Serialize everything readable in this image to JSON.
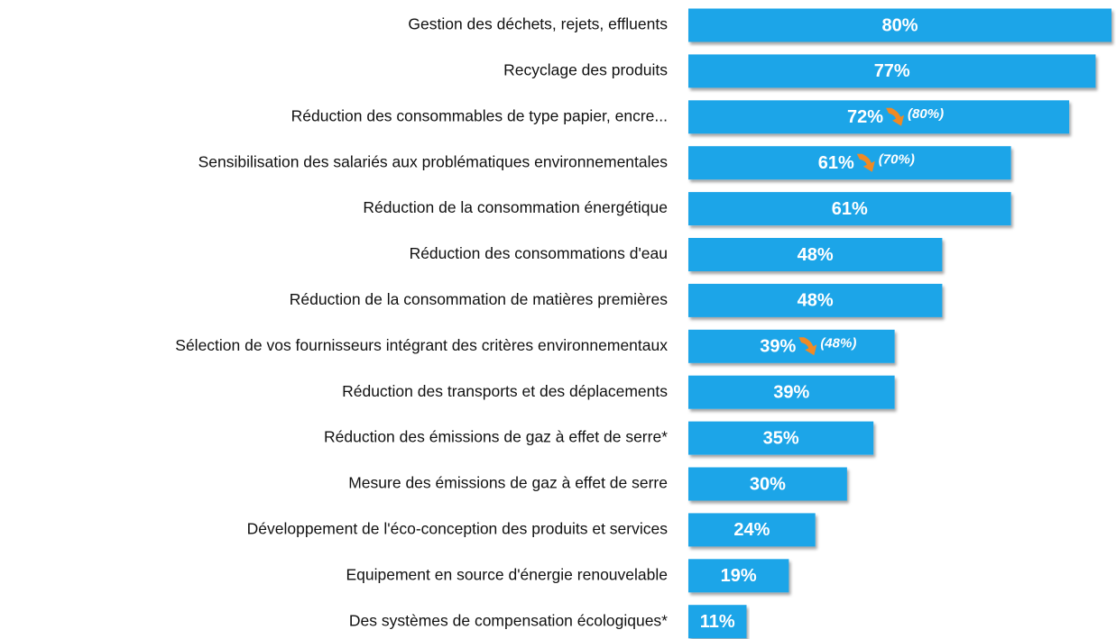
{
  "chart_data": {
    "type": "bar",
    "orientation": "horizontal",
    "color": "#1fa5e8",
    "categories": [
      "Gestion des déchets, rejets, effluents",
      "Recyclage des produits",
      "Réduction des consommables de type papier, encre...",
      "Sensibilisation des salariés aux problématiques environnementales",
      "Réduction de la consommation énergétique",
      "Réduction des consommations d'eau",
      "Réduction de la consommation de matières premières",
      "Sélection de vos fournisseurs intégrant des critères environnementaux",
      "Réduction des transports et des déplacements",
      "Réduction des émissions de gaz à effet de serre*",
      "Mesure des émissions de gaz à effet de serre",
      "Développement de l'éco-conception des produits et services",
      "Equipement en source d'énergie renouvelable",
      "Des systèmes de compensation écologiques*"
    ],
    "values": [
      80,
      77,
      72,
      61,
      61,
      48,
      48,
      39,
      39,
      35,
      30,
      24,
      19,
      11
    ],
    "value_labels": [
      "80%",
      "77%",
      "72%",
      "61%",
      "61%",
      "48%",
      "48%",
      "39%",
      "39%",
      "35%",
      "30%",
      "24%",
      "19%",
      "11%"
    ],
    "previous_values": [
      null,
      null,
      80,
      70,
      null,
      null,
      null,
      48,
      null,
      null,
      null,
      null,
      null,
      null
    ],
    "previous_value_labels": [
      null,
      null,
      "(80%)",
      "(70%)",
      null,
      null,
      null,
      "(48%)",
      null,
      null,
      null,
      null,
      null,
      null
    ],
    "arrow_color": "#f08a24"
  }
}
